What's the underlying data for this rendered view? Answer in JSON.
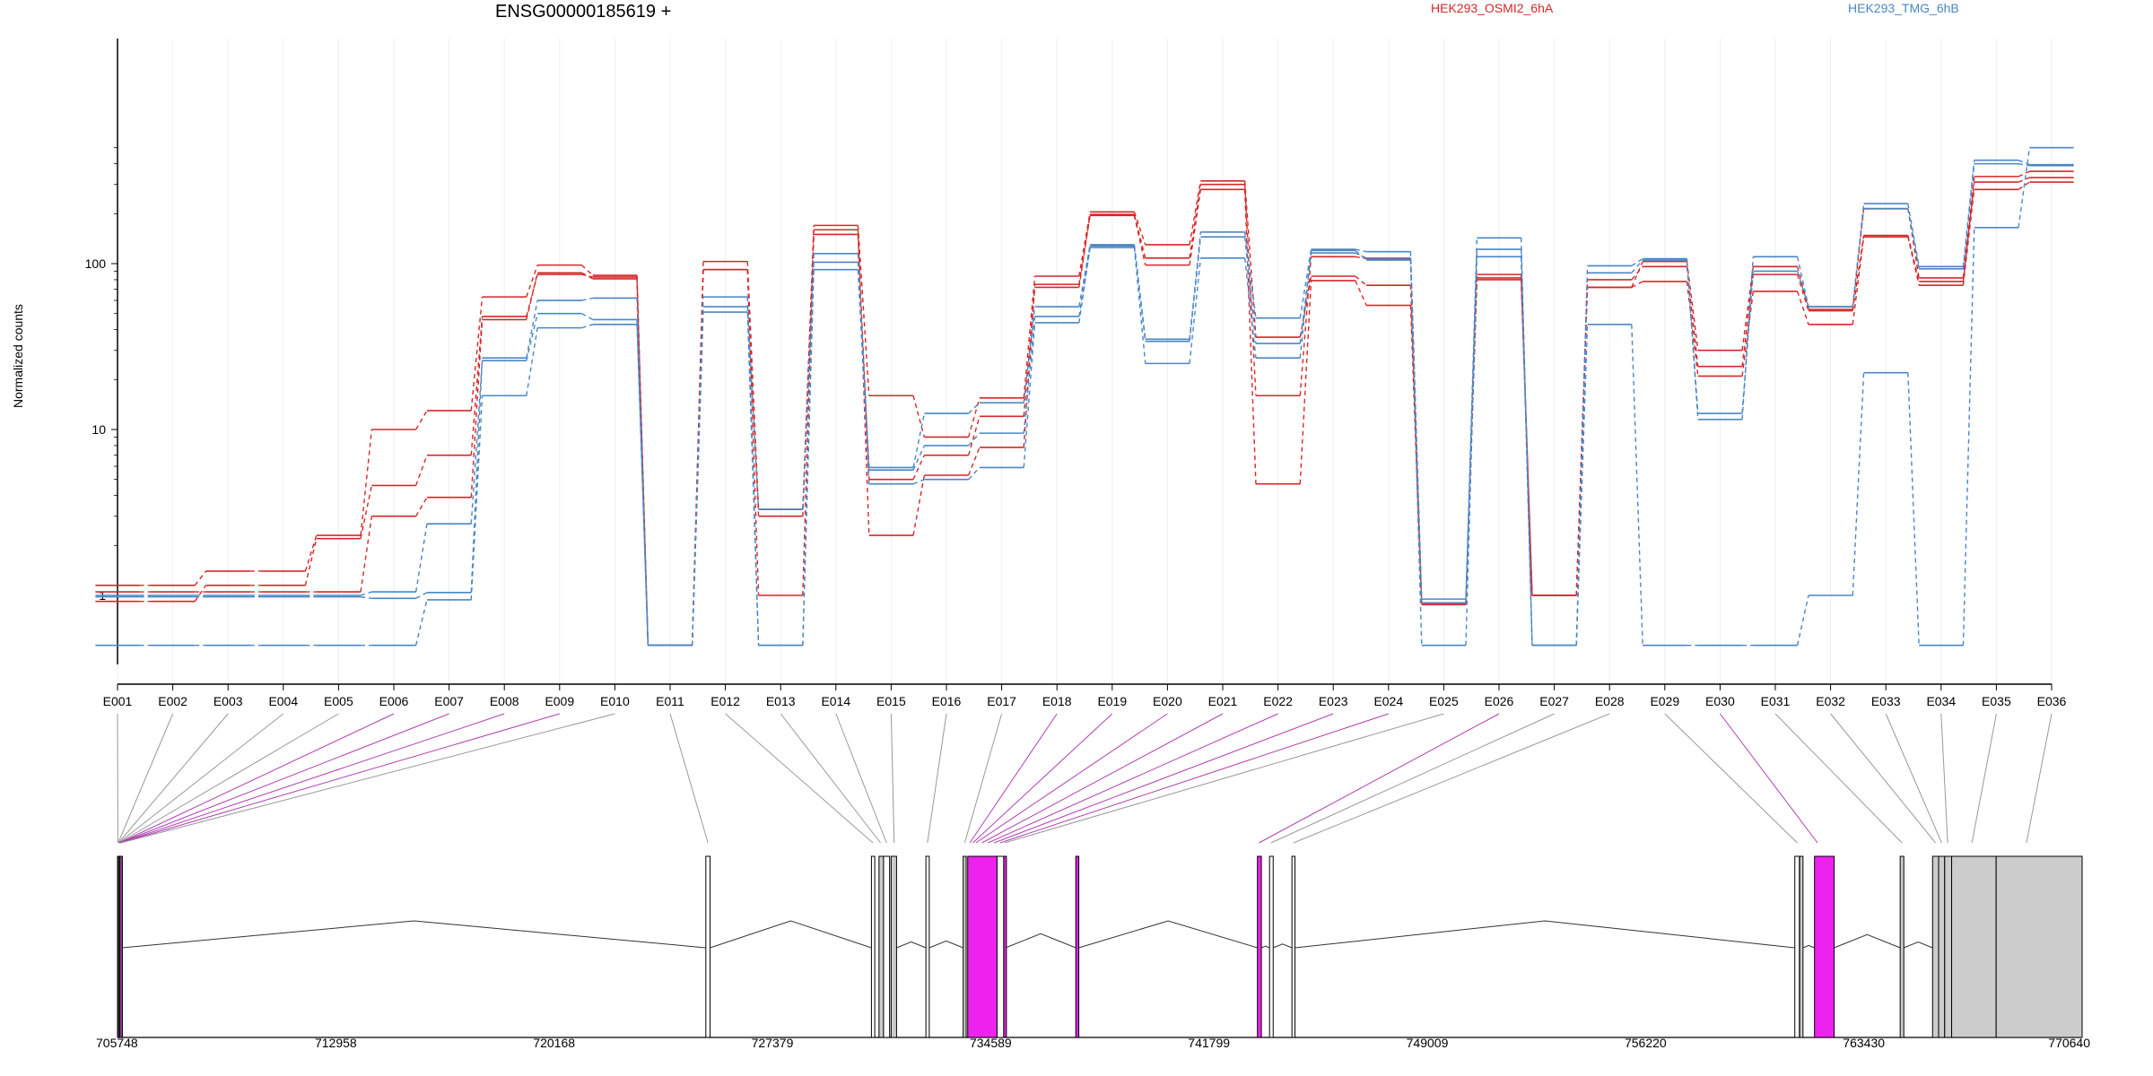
{
  "chart_data": {
    "type": "line",
    "title": "ENSG00000185619 +",
    "ylabel": "Normalized counts",
    "yscale": "log",
    "yticks": [
      "1",
      "10",
      "100"
    ],
    "exons": [
      "E001",
      "E002",
      "E003",
      "E004",
      "E005",
      "E006",
      "E007",
      "E008",
      "E009",
      "E010",
      "E011",
      "E012",
      "E013",
      "E014",
      "E015",
      "E016",
      "E017",
      "E018",
      "E019",
      "E020",
      "E021",
      "E022",
      "E023",
      "E024",
      "E025",
      "E026",
      "E027",
      "E028",
      "E029",
      "E030",
      "E031",
      "E032",
      "E033",
      "E034",
      "E035",
      "E036"
    ],
    "highlighted_exons": [
      "E006",
      "E007",
      "E008",
      "E009",
      "E018",
      "E019",
      "E020",
      "E021",
      "E022",
      "E023",
      "E024",
      "E026",
      "E030"
    ],
    "series": [
      {
        "name": "HEK293_OSMI2_6hA",
        "color": "#d62728",
        "style": "solid",
        "values": [
          1.15,
          1.15,
          1.4,
          1.4,
          2.3,
          10,
          13,
          63,
          98,
          85,
          0.5,
          103,
          3.3,
          170,
          16,
          9,
          15.5,
          84,
          205,
          130,
          315,
          36,
          84,
          74,
          0.9,
          86,
          1,
          72,
          103,
          30,
          96,
          53,
          214,
          82,
          335,
          360
        ]
      },
      {
        "name": "HEK293_OSMI2_6hA",
        "color": "#d62728",
        "style": "solid",
        "values": [
          0.92,
          0.92,
          1.15,
          1.15,
          2.2,
          4.6,
          7,
          48,
          86,
          83,
          0.5,
          92,
          1,
          160,
          2.3,
          5.3,
          7.8,
          75,
          195,
          98,
          280,
          4.7,
          79,
          56,
          0.88,
          80,
          1,
          72,
          78,
          21,
          68,
          43,
          145,
          74,
          280,
          310
        ]
      },
      {
        "name": "HEK293_OSMI2_6hA",
        "color": "#d62728",
        "style": "solid",
        "values": [
          1.05,
          1.05,
          1.05,
          1.05,
          1.05,
          3,
          3.9,
          46,
          88,
          81,
          0.5,
          92,
          3,
          150,
          5,
          7,
          12,
          72,
          198,
          108,
          300,
          16,
          110,
          107,
          0.9,
          82,
          1,
          80,
          96,
          24,
          86,
          52,
          148,
          78,
          310,
          330
        ]
      },
      {
        "name": "HEK293_TMG_6hB",
        "color": "#4a86c5",
        "style": "solid",
        "values": [
          0.5,
          0.5,
          0.5,
          0.5,
          0.5,
          0.5,
          0.94,
          16,
          41,
          43,
          0.5,
          51,
          0.5,
          92,
          4.7,
          5,
          5.9,
          44,
          125,
          25,
          108,
          27,
          120,
          105,
          0.5,
          110,
          0.5,
          43,
          0.5,
          0.5,
          0.5,
          1,
          22,
          0.5,
          165,
          500
        ]
      },
      {
        "name": "HEK293_TMG_6hB",
        "color": "#4a86c5",
        "style": "solid",
        "values": [
          1,
          1,
          1,
          1,
          1,
          1.05,
          2.7,
          26,
          50,
          46,
          0.5,
          55,
          3.3,
          102,
          5.7,
          8,
          9.5,
          48,
          128,
          34,
          145,
          33,
          116,
          108,
          0.9,
          122,
          0.5,
          88,
          105,
          12.5,
          90,
          55,
          215,
          93,
          400,
          390
        ]
      },
      {
        "name": "HEK293_TMG_6hB",
        "color": "#4a86c5",
        "style": "solid",
        "values": [
          0.98,
          0.98,
          0.98,
          0.98,
          0.98,
          0.96,
          1.04,
          27,
          60,
          62,
          0.5,
          63,
          0.5,
          115,
          5.9,
          12.5,
          14.5,
          55,
          130,
          35,
          155,
          47,
          122,
          118,
          0.95,
          143,
          0.5,
          97,
          107,
          11.5,
          110,
          55,
          230,
          96,
          420,
          395
        ]
      }
    ],
    "legend": [
      "HEK293_OSMI2_6hA",
      "HEK293_TMG_6hB"
    ],
    "gene_axis": {
      "ticks": [
        "705748",
        "712958",
        "720168",
        "727379",
        "734589",
        "741799",
        "749009",
        "756220",
        "763430",
        "770640"
      ],
      "start": 705748,
      "end": 770640,
      "exon_blocks": [
        {
          "exon": "E001",
          "start": 705748,
          "end": 705820,
          "color": "#333333"
        },
        {
          "exon": "E002-E010",
          "start": 705820,
          "end": 705900,
          "color": "#8e3a9a"
        },
        {
          "exon": "E011",
          "start": 725180,
          "end": 725320,
          "color": "#ffffff"
        },
        {
          "exon": "E012",
          "start": 730650,
          "end": 730760,
          "color": "#ffffff"
        },
        {
          "exon": "E013",
          "start": 730900,
          "end": 731050,
          "color": "#cccccc"
        },
        {
          "exon": "E014",
          "start": 731050,
          "end": 731250,
          "color": "#ffffff"
        },
        {
          "exon": "E015",
          "start": 731300,
          "end": 731480,
          "color": "#cccccc"
        },
        {
          "exon": "E016",
          "start": 732450,
          "end": 732560,
          "color": "#ffffff"
        },
        {
          "exon": "E017",
          "start": 733680,
          "end": 733780,
          "color": "#cccccc"
        },
        {
          "exon": "E018-E021",
          "start": 733830,
          "end": 734800,
          "color": "#ee22ee"
        },
        {
          "exon": "E022",
          "start": 734800,
          "end": 735020,
          "color": "#ffffff"
        },
        {
          "exon": "E023",
          "start": 735020,
          "end": 735080,
          "color": "#ee22ee"
        },
        {
          "exon": "E024",
          "start": 737400,
          "end": 737500,
          "color": "#ee22ee"
        },
        {
          "exon": "E025",
          "start": 743400,
          "end": 743530,
          "color": "#ee22ee"
        },
        {
          "exon": "E026",
          "start": 743800,
          "end": 743920,
          "color": "#ffffff"
        },
        {
          "exon": "E027",
          "start": 744540,
          "end": 744640,
          "color": "#ffffff"
        },
        {
          "exon": "E028",
          "start": 761150,
          "end": 761300,
          "color": "#ffffff"
        },
        {
          "exon": "E029",
          "start": 761310,
          "end": 761420,
          "color": "#cccccc"
        },
        {
          "exon": "E030",
          "start": 761800,
          "end": 762450,
          "color": "#ee22ee"
        },
        {
          "exon": "E031",
          "start": 764630,
          "end": 764750,
          "color": "#cccccc"
        },
        {
          "exon": "E032",
          "start": 765700,
          "end": 765900,
          "color": "#cccccc"
        },
        {
          "exon": "E033",
          "start": 765900,
          "end": 766100,
          "color": "#cccccc"
        },
        {
          "exon": "E034",
          "start": 766100,
          "end": 766330,
          "color": "#cccccc"
        },
        {
          "exon": "E035",
          "start": 766330,
          "end": 767800,
          "color": "#cccccc"
        },
        {
          "exon": "E036",
          "start": 767800,
          "end": 770640,
          "color": "#cccccc"
        }
      ]
    }
  }
}
